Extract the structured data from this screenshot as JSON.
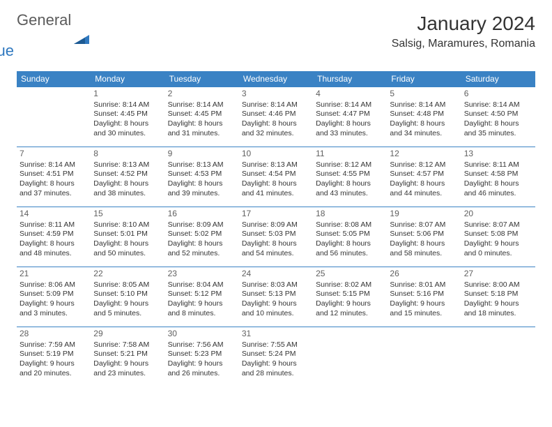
{
  "logo": {
    "general": "General",
    "blue": "Blue"
  },
  "title": "January 2024",
  "location": "Salsig, Maramures, Romania",
  "weekdays": [
    "Sunday",
    "Monday",
    "Tuesday",
    "Wednesday",
    "Thursday",
    "Friday",
    "Saturday"
  ],
  "colors": {
    "header_bg": "#3a82c4",
    "header_fg": "#ffffff",
    "border": "#3a82c4",
    "logo_gray": "#5b5b5b",
    "logo_blue": "#2f78bf"
  },
  "weeks": [
    [
      null,
      {
        "n": "1",
        "sr": "Sunrise: 8:14 AM",
        "ss": "Sunset: 4:45 PM",
        "d1": "Daylight: 8 hours",
        "d2": "and 30 minutes."
      },
      {
        "n": "2",
        "sr": "Sunrise: 8:14 AM",
        "ss": "Sunset: 4:45 PM",
        "d1": "Daylight: 8 hours",
        "d2": "and 31 minutes."
      },
      {
        "n": "3",
        "sr": "Sunrise: 8:14 AM",
        "ss": "Sunset: 4:46 PM",
        "d1": "Daylight: 8 hours",
        "d2": "and 32 minutes."
      },
      {
        "n": "4",
        "sr": "Sunrise: 8:14 AM",
        "ss": "Sunset: 4:47 PM",
        "d1": "Daylight: 8 hours",
        "d2": "and 33 minutes."
      },
      {
        "n": "5",
        "sr": "Sunrise: 8:14 AM",
        "ss": "Sunset: 4:48 PM",
        "d1": "Daylight: 8 hours",
        "d2": "and 34 minutes."
      },
      {
        "n": "6",
        "sr": "Sunrise: 8:14 AM",
        "ss": "Sunset: 4:50 PM",
        "d1": "Daylight: 8 hours",
        "d2": "and 35 minutes."
      }
    ],
    [
      {
        "n": "7",
        "sr": "Sunrise: 8:14 AM",
        "ss": "Sunset: 4:51 PM",
        "d1": "Daylight: 8 hours",
        "d2": "and 37 minutes."
      },
      {
        "n": "8",
        "sr": "Sunrise: 8:13 AM",
        "ss": "Sunset: 4:52 PM",
        "d1": "Daylight: 8 hours",
        "d2": "and 38 minutes."
      },
      {
        "n": "9",
        "sr": "Sunrise: 8:13 AM",
        "ss": "Sunset: 4:53 PM",
        "d1": "Daylight: 8 hours",
        "d2": "and 39 minutes."
      },
      {
        "n": "10",
        "sr": "Sunrise: 8:13 AM",
        "ss": "Sunset: 4:54 PM",
        "d1": "Daylight: 8 hours",
        "d2": "and 41 minutes."
      },
      {
        "n": "11",
        "sr": "Sunrise: 8:12 AM",
        "ss": "Sunset: 4:55 PM",
        "d1": "Daylight: 8 hours",
        "d2": "and 43 minutes."
      },
      {
        "n": "12",
        "sr": "Sunrise: 8:12 AM",
        "ss": "Sunset: 4:57 PM",
        "d1": "Daylight: 8 hours",
        "d2": "and 44 minutes."
      },
      {
        "n": "13",
        "sr": "Sunrise: 8:11 AM",
        "ss": "Sunset: 4:58 PM",
        "d1": "Daylight: 8 hours",
        "d2": "and 46 minutes."
      }
    ],
    [
      {
        "n": "14",
        "sr": "Sunrise: 8:11 AM",
        "ss": "Sunset: 4:59 PM",
        "d1": "Daylight: 8 hours",
        "d2": "and 48 minutes."
      },
      {
        "n": "15",
        "sr": "Sunrise: 8:10 AM",
        "ss": "Sunset: 5:01 PM",
        "d1": "Daylight: 8 hours",
        "d2": "and 50 minutes."
      },
      {
        "n": "16",
        "sr": "Sunrise: 8:09 AM",
        "ss": "Sunset: 5:02 PM",
        "d1": "Daylight: 8 hours",
        "d2": "and 52 minutes."
      },
      {
        "n": "17",
        "sr": "Sunrise: 8:09 AM",
        "ss": "Sunset: 5:03 PM",
        "d1": "Daylight: 8 hours",
        "d2": "and 54 minutes."
      },
      {
        "n": "18",
        "sr": "Sunrise: 8:08 AM",
        "ss": "Sunset: 5:05 PM",
        "d1": "Daylight: 8 hours",
        "d2": "and 56 minutes."
      },
      {
        "n": "19",
        "sr": "Sunrise: 8:07 AM",
        "ss": "Sunset: 5:06 PM",
        "d1": "Daylight: 8 hours",
        "d2": "and 58 minutes."
      },
      {
        "n": "20",
        "sr": "Sunrise: 8:07 AM",
        "ss": "Sunset: 5:08 PM",
        "d1": "Daylight: 9 hours",
        "d2": "and 0 minutes."
      }
    ],
    [
      {
        "n": "21",
        "sr": "Sunrise: 8:06 AM",
        "ss": "Sunset: 5:09 PM",
        "d1": "Daylight: 9 hours",
        "d2": "and 3 minutes."
      },
      {
        "n": "22",
        "sr": "Sunrise: 8:05 AM",
        "ss": "Sunset: 5:10 PM",
        "d1": "Daylight: 9 hours",
        "d2": "and 5 minutes."
      },
      {
        "n": "23",
        "sr": "Sunrise: 8:04 AM",
        "ss": "Sunset: 5:12 PM",
        "d1": "Daylight: 9 hours",
        "d2": "and 8 minutes."
      },
      {
        "n": "24",
        "sr": "Sunrise: 8:03 AM",
        "ss": "Sunset: 5:13 PM",
        "d1": "Daylight: 9 hours",
        "d2": "and 10 minutes."
      },
      {
        "n": "25",
        "sr": "Sunrise: 8:02 AM",
        "ss": "Sunset: 5:15 PM",
        "d1": "Daylight: 9 hours",
        "d2": "and 12 minutes."
      },
      {
        "n": "26",
        "sr": "Sunrise: 8:01 AM",
        "ss": "Sunset: 5:16 PM",
        "d1": "Daylight: 9 hours",
        "d2": "and 15 minutes."
      },
      {
        "n": "27",
        "sr": "Sunrise: 8:00 AM",
        "ss": "Sunset: 5:18 PM",
        "d1": "Daylight: 9 hours",
        "d2": "and 18 minutes."
      }
    ],
    [
      {
        "n": "28",
        "sr": "Sunrise: 7:59 AM",
        "ss": "Sunset: 5:19 PM",
        "d1": "Daylight: 9 hours",
        "d2": "and 20 minutes."
      },
      {
        "n": "29",
        "sr": "Sunrise: 7:58 AM",
        "ss": "Sunset: 5:21 PM",
        "d1": "Daylight: 9 hours",
        "d2": "and 23 minutes."
      },
      {
        "n": "30",
        "sr": "Sunrise: 7:56 AM",
        "ss": "Sunset: 5:23 PM",
        "d1": "Daylight: 9 hours",
        "d2": "and 26 minutes."
      },
      {
        "n": "31",
        "sr": "Sunrise: 7:55 AM",
        "ss": "Sunset: 5:24 PM",
        "d1": "Daylight: 9 hours",
        "d2": "and 28 minutes."
      },
      null,
      null,
      null
    ]
  ]
}
